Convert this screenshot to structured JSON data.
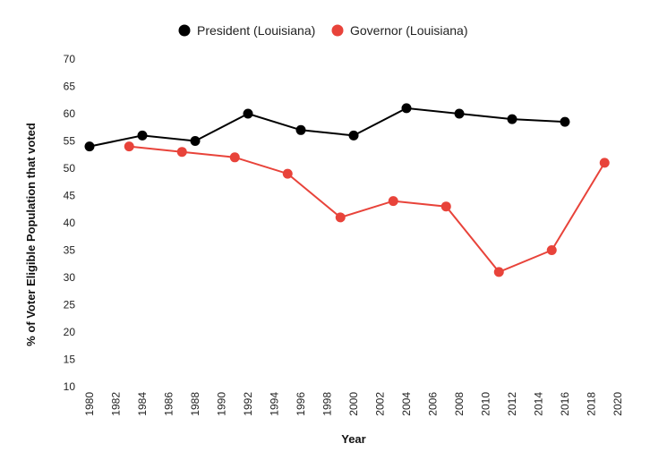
{
  "chart_data": {
    "type": "line",
    "title": "",
    "xlabel": "Year",
    "ylabel": "% of Voter Eligible Population that voted",
    "xlim": [
      1980,
      2020
    ],
    "ylim": [
      10,
      70
    ],
    "x_ticks": [
      1980,
      1982,
      1984,
      1986,
      1988,
      1990,
      1992,
      1994,
      1996,
      1998,
      2000,
      2002,
      2004,
      2006,
      2008,
      2010,
      2012,
      2014,
      2016,
      2018,
      2020
    ],
    "y_ticks": [
      10,
      15,
      20,
      25,
      30,
      35,
      40,
      45,
      50,
      55,
      60,
      65,
      70
    ],
    "grid": false,
    "legend_position": "top-center",
    "series": [
      {
        "name": "President (Louisiana)",
        "color": "#000000",
        "x": [
          1980,
          1984,
          1988,
          1992,
          1996,
          2000,
          2004,
          2008,
          2012,
          2016
        ],
        "y": [
          54,
          56,
          55,
          60,
          57,
          56,
          61,
          60,
          59,
          58.5
        ]
      },
      {
        "name": "Governor (Louisiana)",
        "color": "#e8433a",
        "x": [
          1983,
          1987,
          1991,
          1995,
          1999,
          2003,
          2007,
          2011,
          2015,
          2019
        ],
        "y": [
          54,
          53,
          52,
          49,
          41,
          44,
          43,
          31,
          35,
          51
        ]
      }
    ]
  }
}
